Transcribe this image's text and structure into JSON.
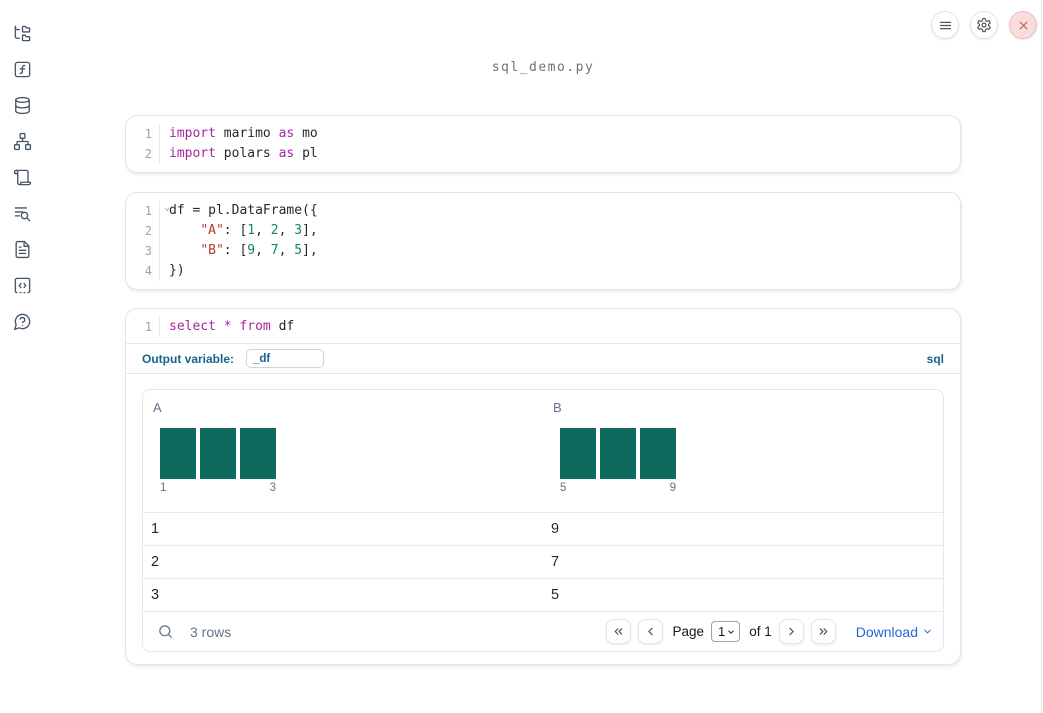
{
  "colors": {
    "icon-slate": "#475569",
    "accent-blue": "#17648c",
    "link-blue": "#2369d2",
    "bar-teal": "#0e6a5c",
    "danger-red": "#d05353",
    "kw": "#a626a4",
    "str": "#b4392c",
    "num": "#128757",
    "code-plain": "#24292f"
  },
  "window": {
    "filename": "sql_demo.py"
  },
  "header": {
    "icons": [
      "menu",
      "settings",
      "shutdown"
    ]
  },
  "sidebar": {
    "icons": [
      "file-tree",
      "function-square",
      "database",
      "dependency-graph",
      "scroll",
      "log-search",
      "document",
      "code-snippets",
      "help"
    ]
  },
  "cells": [
    {
      "lines": [
        {
          "num": "1",
          "tokens": [
            {
              "t": "import",
              "c": "kw"
            },
            {
              "t": " marimo ",
              "c": "p"
            },
            {
              "t": "as",
              "c": "kw"
            },
            {
              "t": " mo",
              "c": "p"
            }
          ]
        },
        {
          "num": "2",
          "tokens": [
            {
              "t": "import",
              "c": "kw"
            },
            {
              "t": " polars ",
              "c": "p"
            },
            {
              "t": "as",
              "c": "kw"
            },
            {
              "t": " pl",
              "c": "p"
            }
          ]
        }
      ]
    },
    {
      "lines": [
        {
          "num": "1",
          "fold": true,
          "tokens": [
            {
              "t": "df = pl.DataFrame({",
              "c": "p"
            }
          ]
        },
        {
          "num": "2",
          "tokens": [
            {
              "t": "    ",
              "c": "p"
            },
            {
              "t": "\"A\"",
              "c": "str"
            },
            {
              "t": ": [",
              "c": "p"
            },
            {
              "t": "1",
              "c": "num"
            },
            {
              "t": ", ",
              "c": "p"
            },
            {
              "t": "2",
              "c": "num"
            },
            {
              "t": ", ",
              "c": "p"
            },
            {
              "t": "3",
              "c": "num"
            },
            {
              "t": "],",
              "c": "p"
            }
          ]
        },
        {
          "num": "3",
          "tokens": [
            {
              "t": "    ",
              "c": "p"
            },
            {
              "t": "\"B\"",
              "c": "str"
            },
            {
              "t": ": [",
              "c": "p"
            },
            {
              "t": "9",
              "c": "num"
            },
            {
              "t": ", ",
              "c": "p"
            },
            {
              "t": "7",
              "c": "num"
            },
            {
              "t": ", ",
              "c": "p"
            },
            {
              "t": "5",
              "c": "num"
            },
            {
              "t": "],",
              "c": "p"
            }
          ]
        },
        {
          "num": "4",
          "tokens": [
            {
              "t": "})",
              "c": "p"
            }
          ]
        }
      ]
    },
    {
      "lines": [
        {
          "num": "1",
          "tokens": [
            {
              "t": "select",
              "c": "kw"
            },
            {
              "t": " ",
              "c": "p"
            },
            {
              "t": "*",
              "c": "kw"
            },
            {
              "t": " ",
              "c": "p"
            },
            {
              "t": "from",
              "c": "kw"
            },
            {
              "t": " df",
              "c": "p"
            }
          ]
        }
      ],
      "output_variable_label": "Output variable:",
      "output_variable_value": "_df",
      "language_badge": "sql"
    }
  ],
  "table": {
    "columns": [
      {
        "label": "A",
        "hist_bars": 3,
        "hist_min_label": "1",
        "hist_max_label": "3",
        "values": [
          1,
          2,
          3
        ]
      },
      {
        "label": "B",
        "hist_bars": 3,
        "hist_min_label": "5",
        "hist_max_label": "9",
        "values": [
          9,
          7,
          5
        ]
      }
    ],
    "rows": [
      [
        "1",
        "9"
      ],
      [
        "2",
        "7"
      ],
      [
        "3",
        "5"
      ]
    ],
    "footer": {
      "row_count": "3 rows",
      "page_label": "Page",
      "page_value": "1",
      "of_label": "of 1",
      "download_label": "Download"
    }
  }
}
